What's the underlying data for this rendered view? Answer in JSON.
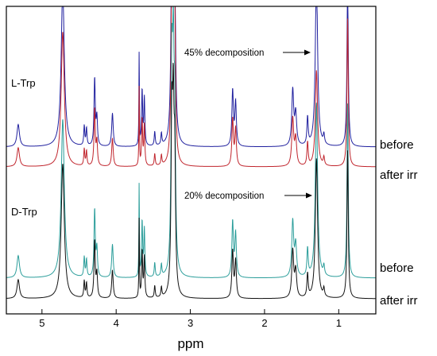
{
  "chart_data": {
    "type": "line",
    "xlabel": "ppm",
    "ylabel": "",
    "xlim": [
      5.48,
      0.5
    ],
    "x_reversed": true,
    "x_ticks": [
      5,
      4,
      3,
      2,
      1
    ],
    "grid": false,
    "panels": [
      {
        "sample": "L-Trp",
        "annotation": "45% decomposition",
        "series": [
          {
            "name": "before",
            "color": "#1f1f9e",
            "baseline": 185,
            "scale": 1.0
          },
          {
            "name": "after irr",
            "color": "#c0242c",
            "baseline": 210,
            "scale": 0.85,
            "peak_1_3_scale": 0.55
          }
        ]
      },
      {
        "sample": "D-Trp",
        "annotation": "20% decomposition",
        "series": [
          {
            "name": "before",
            "color": "#2a9d9a",
            "baseline": 350,
            "scale": 1.0
          },
          {
            "name": "after irr",
            "color": "#111111",
            "baseline": 376,
            "scale": 0.85,
            "peak_1_3_scale": 0.8
          }
        ]
      }
    ],
    "peaks": [
      {
        "ppm": 5.32,
        "h": 28,
        "w": 0.02
      },
      {
        "ppm": 4.72,
        "h": 200,
        "w": 0.025
      },
      {
        "ppm": 4.43,
        "h": 25,
        "w": 0.008
      },
      {
        "ppm": 4.4,
        "h": 22,
        "w": 0.008
      },
      {
        "ppm": 4.29,
        "h": 85,
        "w": 0.01
      },
      {
        "ppm": 4.26,
        "h": 35,
        "w": 0.01
      },
      {
        "ppm": 4.05,
        "h": 42,
        "w": 0.012
      },
      {
        "ppm": 3.69,
        "h": 120,
        "w": 0.004
      },
      {
        "ppm": 3.65,
        "h": 70,
        "w": 0.008
      },
      {
        "ppm": 3.62,
        "h": 60,
        "w": 0.008
      },
      {
        "ppm": 3.48,
        "h": 18,
        "w": 0.008
      },
      {
        "ppm": 3.39,
        "h": 15,
        "w": 0.008
      },
      {
        "ppm": 3.25,
        "h": 240,
        "w": 0.012
      },
      {
        "ppm": 3.23,
        "h": 240,
        "w": 0.012
      },
      {
        "ppm": 3.21,
        "h": 180,
        "w": 0.012
      },
      {
        "ppm": 2.43,
        "h": 70,
        "w": 0.012
      },
      {
        "ppm": 2.39,
        "h": 55,
        "w": 0.012
      },
      {
        "ppm": 1.62,
        "h": 70,
        "w": 0.015
      },
      {
        "ppm": 1.58,
        "h": 40,
        "w": 0.015
      },
      {
        "ppm": 1.42,
        "h": 35,
        "w": 0.01
      },
      {
        "ppm": 1.3,
        "h": 220,
        "w": 0.018
      },
      {
        "ppm": 1.2,
        "h": 12,
        "w": 0.01
      },
      {
        "ppm": 0.88,
        "h": 220,
        "w": 0.01
      }
    ]
  }
}
